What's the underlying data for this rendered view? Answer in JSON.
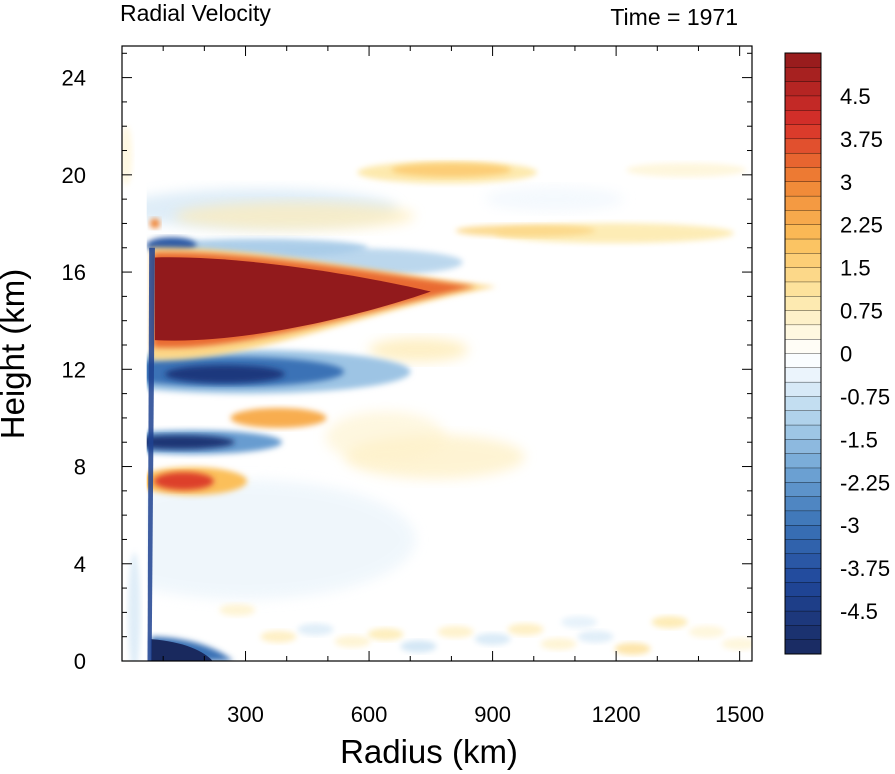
{
  "chart_data": {
    "type": "heatmap",
    "title": "Radial Velocity",
    "time_label": "Time = 1971",
    "xlabel": "Radius (km)",
    "ylabel": "Height (km)",
    "xlim": [
      0,
      1530
    ],
    "ylim": [
      0,
      25.3
    ],
    "x_ticks": [
      300,
      600,
      900,
      1200,
      1500
    ],
    "y_ticks": [
      0,
      4,
      8,
      12,
      16,
      20,
      24
    ],
    "grid": false,
    "colorbar": {
      "placement": "right",
      "range": [
        -5.25,
        5.25
      ],
      "step": 0.25,
      "labels": [
        "4.5",
        "3.75",
        "3",
        "2.25",
        "1.5",
        "0.75",
        "0",
        "-0.75",
        "-1.5",
        "-2.25",
        "-3",
        "-3.75",
        "-4.5"
      ],
      "label_values": [
        4.5,
        3.75,
        3,
        2.25,
        1.5,
        0.75,
        0,
        -0.75,
        -1.5,
        -2.25,
        -3,
        -3.75,
        -4.5
      ],
      "color_stops": [
        {
          "v": -5.25,
          "c": "#19295e"
        },
        {
          "v": -4.0,
          "c": "#20479a"
        },
        {
          "v": -3.0,
          "c": "#3a72b6"
        },
        {
          "v": -2.0,
          "c": "#72a7d6"
        },
        {
          "v": -1.0,
          "c": "#b9d8ee"
        },
        {
          "v": -0.25,
          "c": "#f5faff"
        },
        {
          "v": 0,
          "c": "#ffffff"
        },
        {
          "v": 0.25,
          "c": "#fffbec"
        },
        {
          "v": 1.0,
          "c": "#fde7a5"
        },
        {
          "v": 2.0,
          "c": "#fbbf5a"
        },
        {
          "v": 3.0,
          "c": "#f08434"
        },
        {
          "v": 4.0,
          "c": "#d8302a"
        },
        {
          "v": 5.25,
          "c": "#921a1c"
        }
      ]
    },
    "features": [
      {
        "name": "upper-level outflow jet",
        "r": [
          90,
          900
        ],
        "z": [
          13.2,
          16.6
        ],
        "peak": 5.5
      },
      {
        "name": "boundary layer inflow",
        "r": [
          70,
          250
        ],
        "z": [
          0,
          1.0
        ],
        "peak": -5.5
      },
      {
        "name": "inflow layer below outflow",
        "r": [
          110,
          520
        ],
        "z": [
          11.0,
          12.7
        ],
        "peak": -4.2
      },
      {
        "name": "mid-level inflow",
        "r": [
          80,
          270
        ],
        "z": [
          8.5,
          9.5
        ],
        "peak": -4.8
      },
      {
        "name": "mid-level outflow",
        "r": [
          90,
          230
        ],
        "z": [
          6.6,
          8.0
        ],
        "peak": 3.8
      },
      {
        "name": "outflow near 10 km",
        "r": [
          330,
          430
        ],
        "z": [
          9.7,
          10.4
        ],
        "peak": 2.3
      },
      {
        "name": "upper outflow band",
        "r": [
          620,
          960
        ],
        "z": [
          19.7,
          20.5
        ],
        "peak": 1.6
      },
      {
        "name": "upper outflow band 2",
        "r": [
          970,
          1420
        ],
        "z": [
          17.2,
          18.0
        ],
        "peak": 1.3
      },
      {
        "name": "inflow above outflow jet",
        "r": [
          90,
          640
        ],
        "z": [
          16.5,
          17.4
        ],
        "peak": -1.3
      }
    ]
  }
}
